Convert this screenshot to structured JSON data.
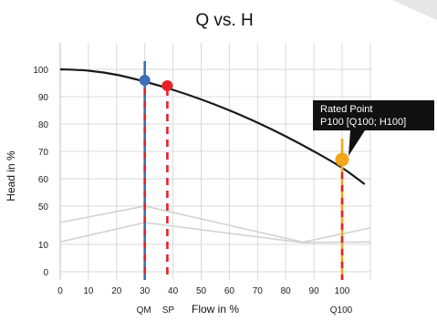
{
  "chart_data": {
    "type": "line",
    "title": "Q vs. H",
    "xlabel": "Flow in %",
    "ylabel": "Head in %",
    "xlim": [
      0,
      110
    ],
    "x_ticks": [
      0,
      10,
      20,
      30,
      40,
      50,
      60,
      70,
      80,
      90,
      100
    ],
    "y_tick_labels": [
      "0",
      "10",
      "50",
      "60",
      "70",
      "80",
      "90",
      "100"
    ],
    "grid": true,
    "y_axis_broken": true,
    "series": [
      {
        "kind": "curve",
        "color": "#1a1a1a",
        "x": [
          0,
          10,
          20,
          30,
          40,
          50,
          60,
          70,
          80,
          90,
          100,
          108
        ],
        "y": [
          100,
          99.5,
          98,
          95.5,
          92.5,
          89,
          85,
          80.5,
          75.5,
          70,
          64,
          58
        ]
      },
      {
        "kind": "efficiency-band-upper",
        "color": "#d2d2d2",
        "x": [
          0,
          30,
          86,
          110
        ],
        "y": [
          44,
          50,
          35,
          42
        ]
      },
      {
        "kind": "efficiency-band-lower",
        "color": "#d2d2d2",
        "x": [
          0,
          30,
          86,
          110
        ],
        "y": [
          37,
          44,
          29,
          37
        ]
      }
    ],
    "markers": [
      {
        "label": "QM",
        "x": 30,
        "y": 96,
        "color": "#3b6fb6",
        "line_color": "#3b6fb6",
        "line_style": "dashed-red-blue"
      },
      {
        "label": "SP",
        "x": 38,
        "y": 94,
        "color": "#e8202a",
        "line_color": "#e8202a",
        "line_style": "dashed"
      },
      {
        "label": "Q100",
        "x": 100,
        "y": 67,
        "color": "#f2a51d",
        "line_color": "#f2a51d",
        "line_style": "dashed-red-yellow"
      }
    ],
    "callout": {
      "line1": "Rated Point",
      "line2": "P100 [Q100; H100]",
      "background": "#111111",
      "text_color": "#ffffff"
    }
  }
}
